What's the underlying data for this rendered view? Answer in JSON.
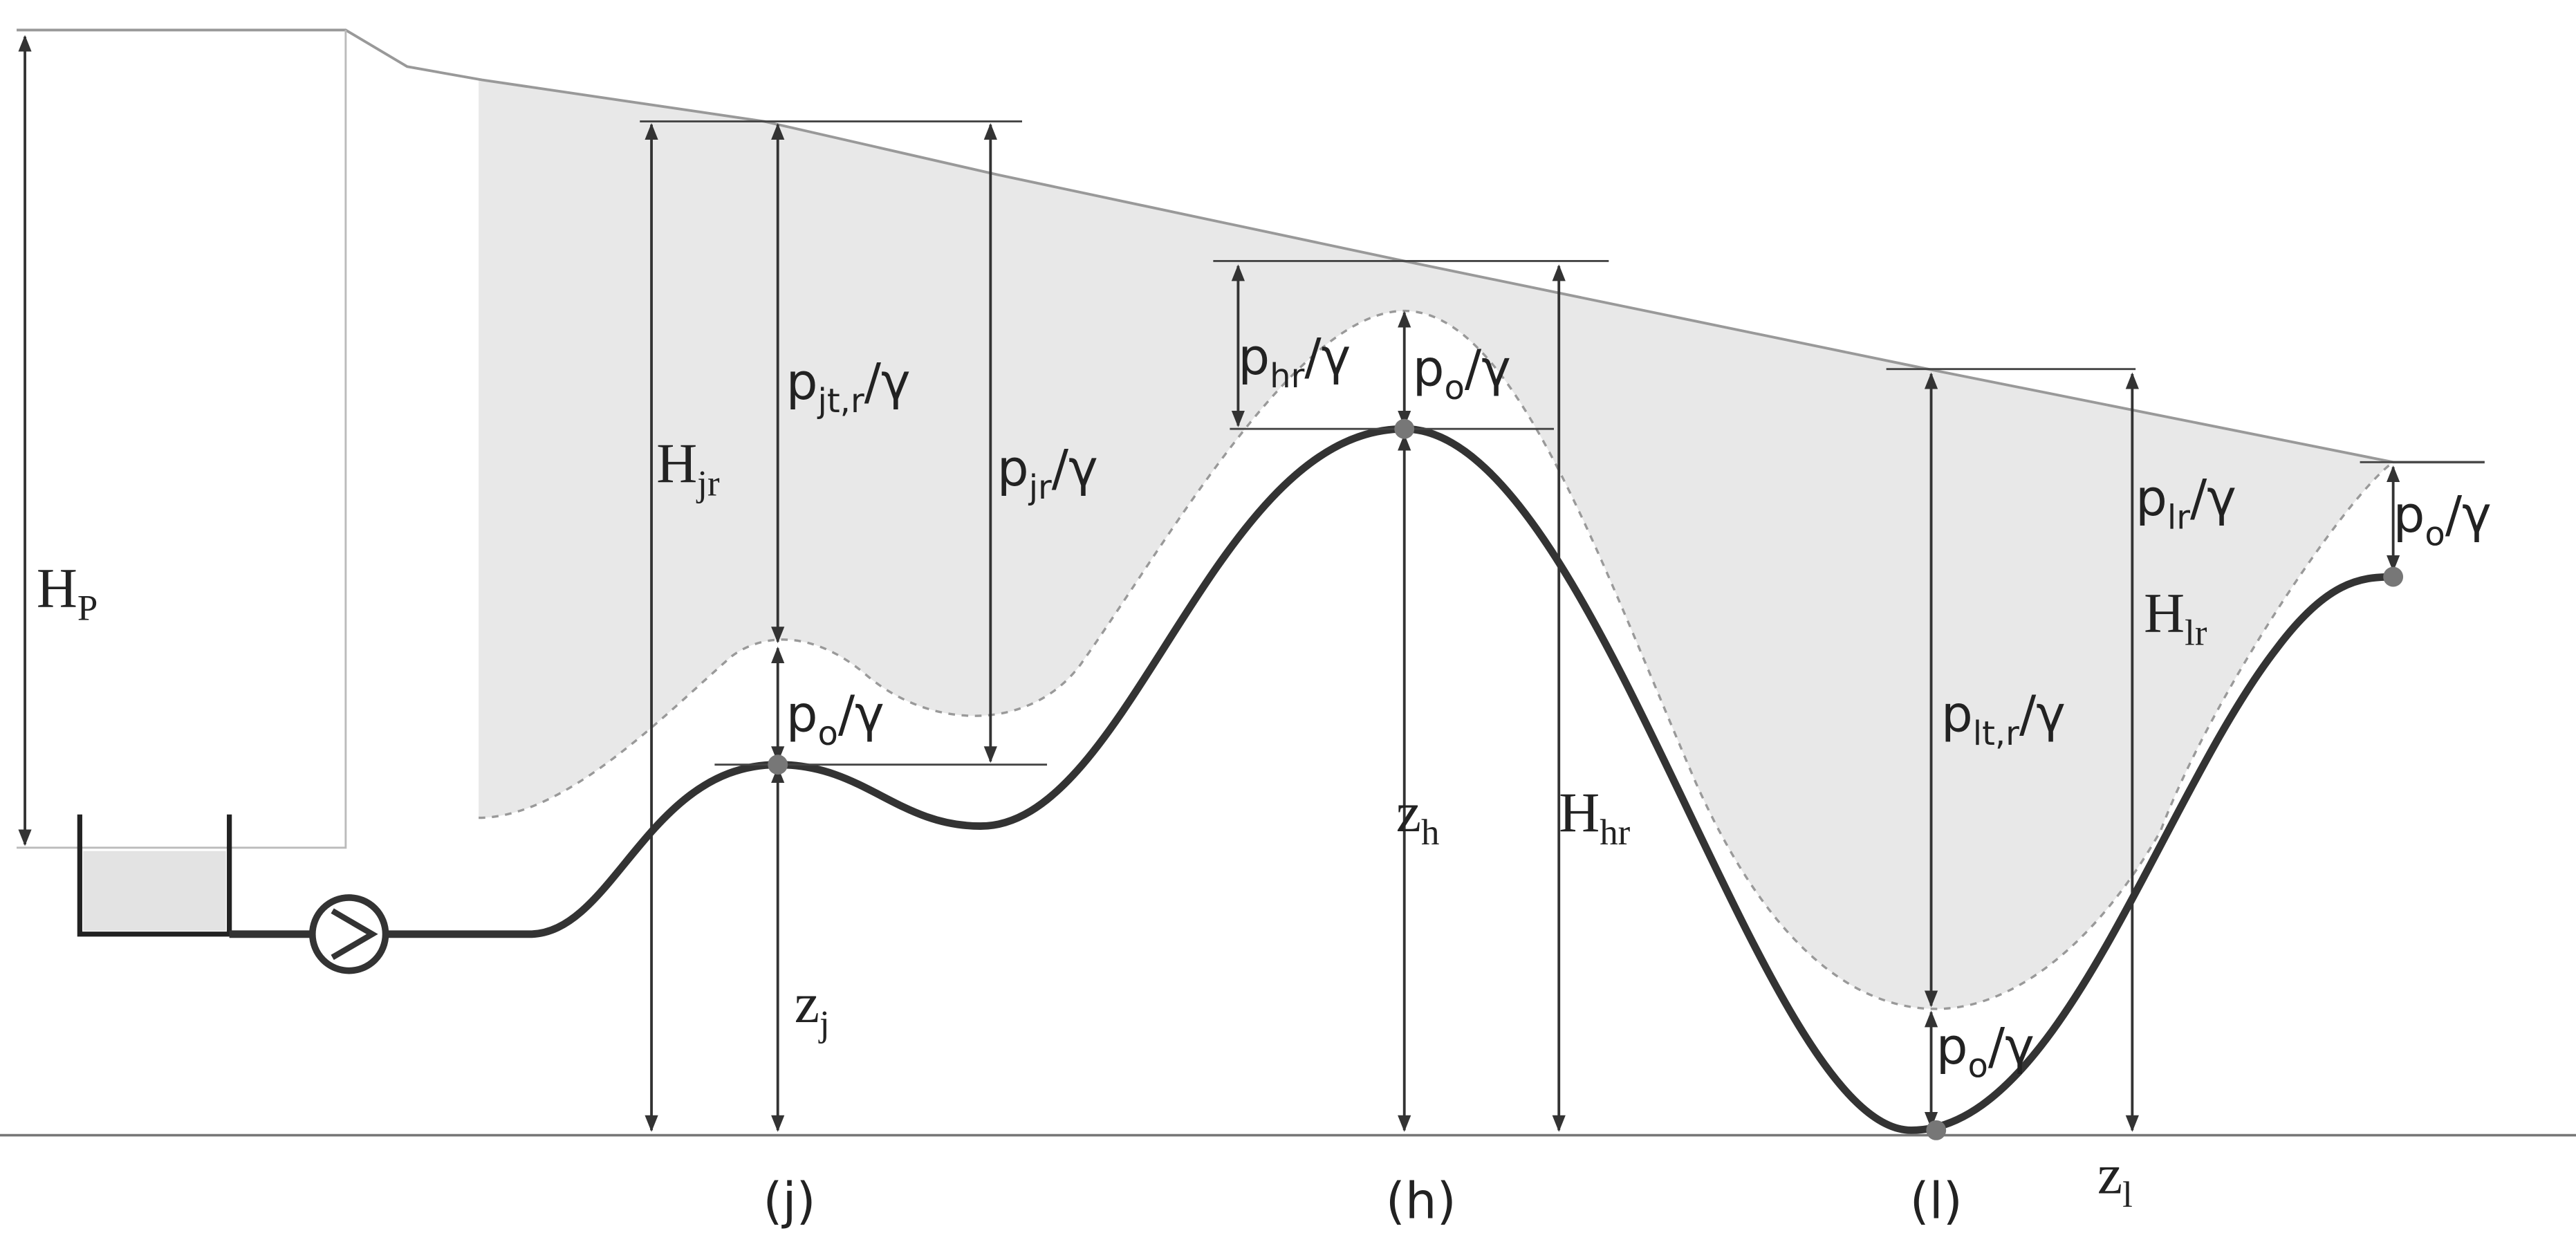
{
  "labels": [
    {
      "text": "H",
      "sub": "P"
    },
    {
      "text": "H",
      "sub": "jr"
    },
    {
      "text": "p",
      "sub": "jt,r",
      "suffix": "/γ"
    },
    {
      "text": "p",
      "sub": "jr",
      "suffix": "/γ"
    },
    {
      "text": "p",
      "sub": "o",
      "suffix": "/γ"
    },
    {
      "text": "z",
      "sub": "j"
    },
    {
      "text": "p",
      "sub": "hr",
      "suffix": "/γ"
    },
    {
      "text": "p",
      "sub": "o",
      "suffix": "/γ"
    },
    {
      "text": "z",
      "sub": "h"
    },
    {
      "text": "H",
      "sub": "hr"
    },
    {
      "text": "p",
      "sub": "lr",
      "suffix": "/γ"
    },
    {
      "text": "H",
      "sub": "lr"
    },
    {
      "text": "p",
      "sub": "lt,r",
      "suffix": "/γ"
    },
    {
      "text": "p",
      "sub": "o",
      "suffix": "/γ"
    },
    {
      "text": "p",
      "sub": "o",
      "suffix": "/γ"
    },
    {
      "text": "z",
      "sub": "l"
    }
  ],
  "points": [
    "(j)",
    "(h)",
    "(l)"
  ]
}
